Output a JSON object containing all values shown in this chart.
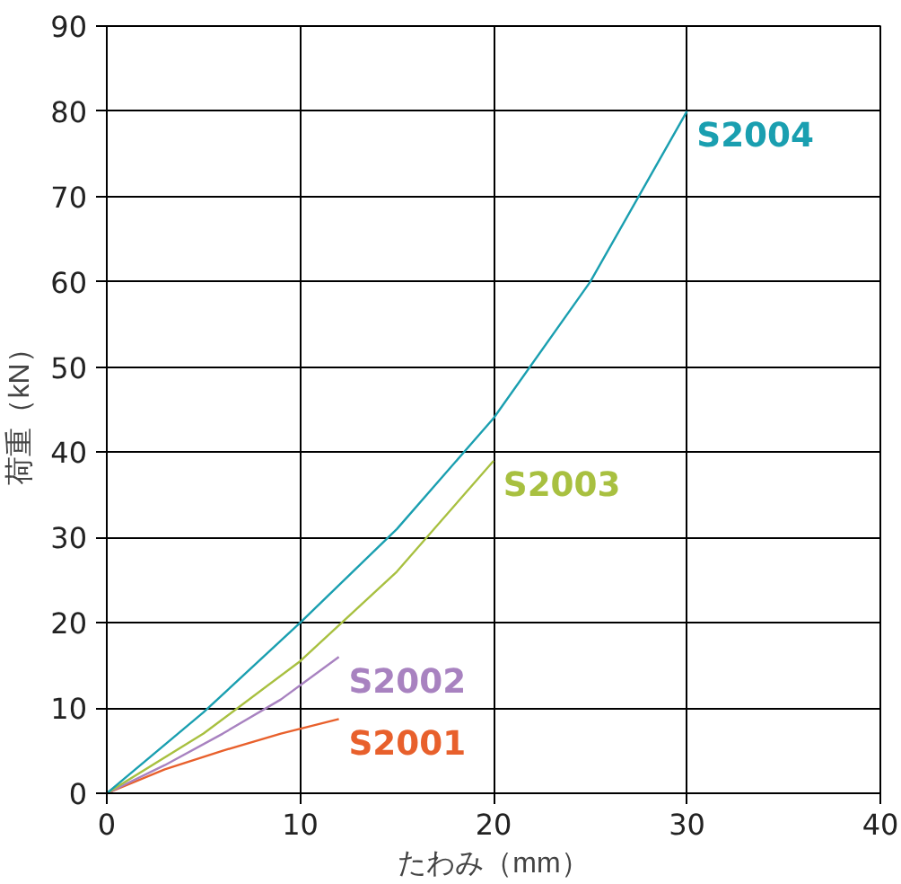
{
  "chart_data": {
    "type": "line",
    "xlabel": "たわみ（mm）",
    "ylabel": "荷重（kN）",
    "xlim": [
      0,
      40
    ],
    "ylim": [
      0,
      90
    ],
    "xticks": [
      0,
      10,
      20,
      30,
      40
    ],
    "yticks": [
      0,
      10,
      20,
      30,
      40,
      50,
      60,
      70,
      80,
      90
    ],
    "grid": true,
    "line_style": "solid",
    "marker": "none",
    "series": [
      {
        "name": "S2001",
        "color": "#e8602c",
        "x": [
          0,
          3,
          6,
          9,
          12
        ],
        "values": [
          0,
          2.8,
          5,
          7,
          8.7
        ]
      },
      {
        "name": "S2002",
        "color": "#a882c0",
        "x": [
          0,
          3,
          6,
          9,
          12
        ],
        "values": [
          0,
          3.3,
          7,
          11,
          16
        ]
      },
      {
        "name": "S2003",
        "color": "#a8c040",
        "x": [
          0,
          5,
          10,
          15,
          20
        ],
        "values": [
          0,
          7,
          15.5,
          26,
          39
        ]
      },
      {
        "name": "S2004",
        "color": "#1a9fb0",
        "x": [
          0,
          5,
          10,
          15,
          20,
          25,
          30
        ],
        "values": [
          0,
          9.5,
          20,
          31,
          44,
          60,
          80
        ]
      }
    ]
  }
}
